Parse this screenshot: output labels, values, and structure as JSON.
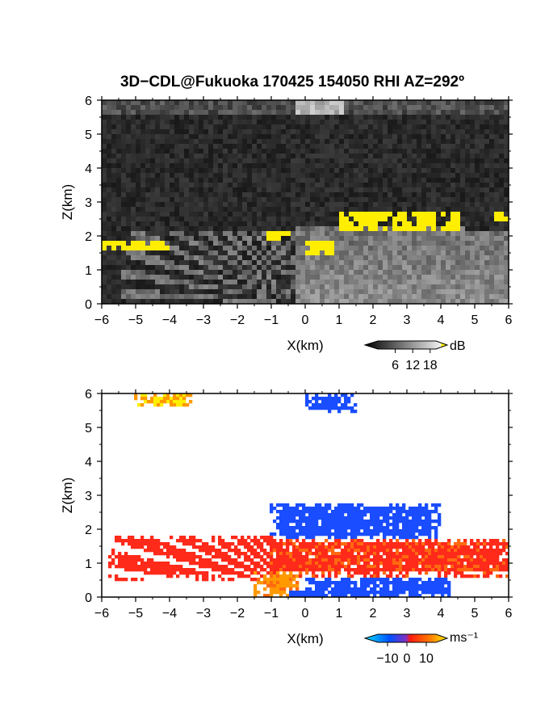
{
  "title": "3D−CDL@Fukuoka 170425 154050 RHI AZ=292º",
  "colors": {
    "background": "#ffffff",
    "echo_highlight": "#ffee00"
  },
  "chart_data": [
    {
      "type": "heatmap",
      "variable": "backscatter",
      "xlabel": "X(km)",
      "ylabel": "Z(km)",
      "xlim": [
        -6,
        6
      ],
      "ylim": [
        0,
        6
      ],
      "x_ticks": [
        "−6",
        "−5",
        "−4",
        "−3",
        "−2",
        "−1",
        "0",
        "1",
        "2",
        "3",
        "4",
        "5",
        "6"
      ],
      "y_ticks": [
        "0",
        "1",
        "2",
        "3",
        "4",
        "5",
        "6"
      ],
      "colorbar": {
        "unit": "dB",
        "ticks": [
          "6",
          "12",
          "18"
        ],
        "range": [
          0,
          20
        ]
      },
      "features": [
        {
          "name": "aerosol boundary layer (bright)",
          "x": [
            -0.2,
            6
          ],
          "z": [
            0,
            2.5
          ]
        },
        {
          "name": "strong echo band",
          "x": [
            1,
            4.5
          ],
          "z": [
            2.2,
            2.7
          ],
          "db": 20
        },
        {
          "name": "strong echo patch",
          "x": [
            -1.1,
            -0.4
          ],
          "z": [
            1.8,
            2.1
          ],
          "db": 20
        },
        {
          "name": "strong echo patch",
          "x": [
            0,
            0.8
          ],
          "z": [
            1.4,
            1.8
          ],
          "db": 20
        },
        {
          "name": "strong echo band",
          "x": [
            -6,
            -4
          ],
          "z": [
            1.6,
            1.8
          ],
          "db": 20
        },
        {
          "name": "strong echo patch",
          "x": [
            5.6,
            6
          ],
          "z": [
            2.5,
            2.7
          ],
          "db": 20
        }
      ]
    },
    {
      "type": "heatmap",
      "variable": "doppler velocity",
      "xlabel": "X(km)",
      "ylabel": "Z(km)",
      "xlim": [
        -6,
        6
      ],
      "ylim": [
        0,
        6
      ],
      "x_ticks": [
        "−6",
        "−5",
        "−4",
        "−3",
        "−2",
        "−1",
        "0",
        "1",
        "2",
        "3",
        "4",
        "5",
        "6"
      ],
      "y_ticks": [
        "0",
        "1",
        "2",
        "3",
        "4",
        "5",
        "6"
      ],
      "colorbar": {
        "unit": "ms⁻¹",
        "ticks": [
          "−10",
          "0",
          "10"
        ],
        "range": [
          -15,
          15
        ]
      },
      "features": [
        {
          "name": "receding flow layer",
          "x": [
            -2,
            6
          ],
          "z": [
            0.6,
            1.7
          ],
          "v": 5
        },
        {
          "name": "approaching flow layer",
          "x": [
            0,
            4.3
          ],
          "z": [
            0,
            0.6
          ],
          "v": -12
        },
        {
          "name": "approaching flow above",
          "x": [
            -1,
            4
          ],
          "z": [
            1.7,
            2.8
          ],
          "v": -12
        },
        {
          "name": "receding beams",
          "x": [
            -5.8,
            -1
          ],
          "z": [
            0.5,
            1.8
          ],
          "v": 4
        },
        {
          "name": "fast receding near surface",
          "x": [
            -1.5,
            -0.2
          ],
          "z": [
            0,
            0.8
          ],
          "v": 12
        },
        {
          "name": "aloft approaching echo",
          "x": [
            0,
            1.5
          ],
          "z": [
            5.4,
            6
          ],
          "v": -12
        },
        {
          "name": "aloft receding echo",
          "x": [
            -5,
            -3.3
          ],
          "z": [
            5.6,
            6
          ],
          "v": 14
        }
      ]
    }
  ]
}
